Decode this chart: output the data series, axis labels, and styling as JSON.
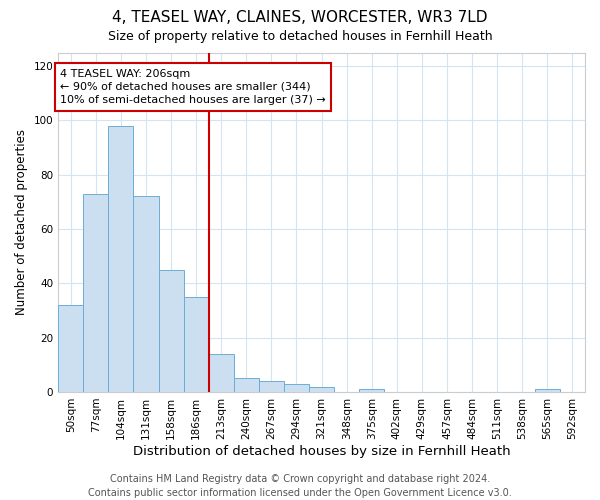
{
  "title": "4, TEASEL WAY, CLAINES, WORCESTER, WR3 7LD",
  "subtitle": "Size of property relative to detached houses in Fernhill Heath",
  "xlabel": "Distribution of detached houses by size in Fernhill Heath",
  "ylabel": "Number of detached properties",
  "bin_labels": [
    "50sqm",
    "77sqm",
    "104sqm",
    "131sqm",
    "158sqm",
    "186sqm",
    "213sqm",
    "240sqm",
    "267sqm",
    "294sqm",
    "321sqm",
    "348sqm",
    "375sqm",
    "402sqm",
    "429sqm",
    "457sqm",
    "484sqm",
    "511sqm",
    "538sqm",
    "565sqm",
    "592sqm"
  ],
  "bar_heights": [
    32,
    73,
    98,
    72,
    45,
    35,
    14,
    5,
    4,
    3,
    2,
    0,
    1,
    0,
    0,
    0,
    0,
    0,
    0,
    1,
    0
  ],
  "bar_color": "#ccdff0",
  "bar_edge_color": "#6baed6",
  "vline_x_index": 6,
  "vline_color": "#cc0000",
  "annotation_line1": "4 TEASEL WAY: 206sqm",
  "annotation_line2": "← 90% of detached houses are smaller (344)",
  "annotation_line3": "10% of semi-detached houses are larger (37) →",
  "annotation_box_edge_color": "#cc0000",
  "annotation_box_facecolor": "white",
  "ylim": [
    0,
    125
  ],
  "yticks": [
    0,
    20,
    40,
    60,
    80,
    100,
    120
  ],
  "footer_line1": "Contains HM Land Registry data © Crown copyright and database right 2024.",
  "footer_line2": "Contains public sector information licensed under the Open Government Licence v3.0.",
  "background_color": "#ffffff",
  "grid_color": "#d4e4f0",
  "title_fontsize": 11,
  "subtitle_fontsize": 9,
  "xlabel_fontsize": 9.5,
  "ylabel_fontsize": 8.5,
  "tick_fontsize": 7.5,
  "annotation_fontsize": 8,
  "footer_fontsize": 7
}
